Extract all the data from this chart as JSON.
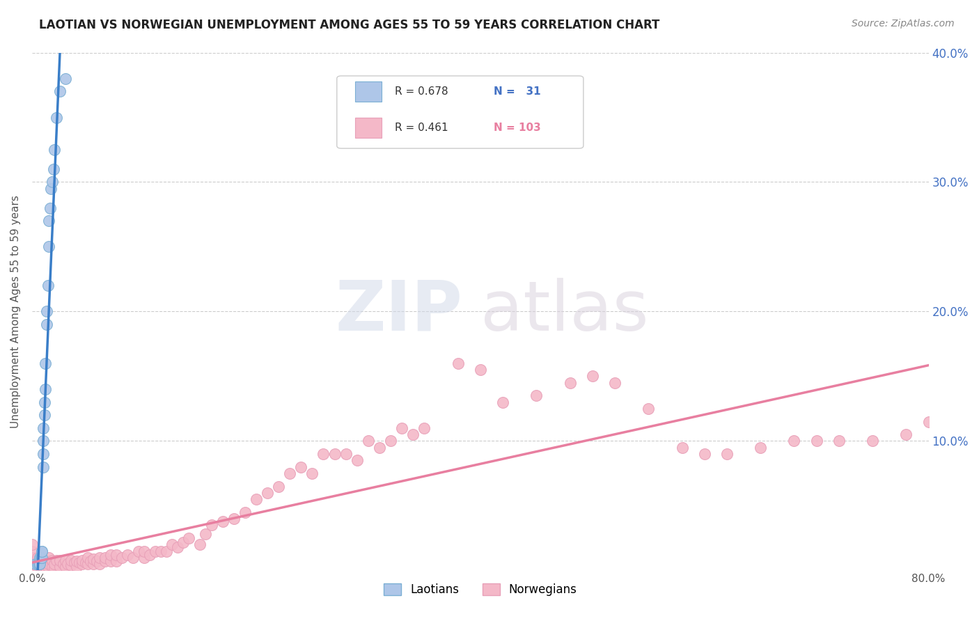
{
  "title": "LAOTIAN VS NORWEGIAN UNEMPLOYMENT AMONG AGES 55 TO 59 YEARS CORRELATION CHART",
  "source": "Source: ZipAtlas.com",
  "ylabel": "Unemployment Among Ages 55 to 59 years",
  "xlim": [
    0,
    0.8
  ],
  "ylim": [
    0,
    0.4
  ],
  "xtick_positions": [
    0.0,
    0.8
  ],
  "xtick_labels": [
    "0.0%",
    "80.0%"
  ],
  "ytick_positions": [
    0.0,
    0.1,
    0.2,
    0.3,
    0.4
  ],
  "ytick_labels": [
    "",
    "10.0%",
    "20.0%",
    "30.0%",
    "40.0%"
  ],
  "grid_yticks": [
    0.1,
    0.2,
    0.3,
    0.4
  ],
  "blue_line_color": "#3a7ec8",
  "pink_line_color": "#e87fa0",
  "blue_scatter_color": "#aec6e8",
  "pink_scatter_color": "#f4b8c8",
  "blue_scatter_edge": "#7bafd4",
  "pink_scatter_edge": "#e8a0b8",
  "right_tick_color": "#4472c4",
  "watermark_zip": "ZIP",
  "watermark_atlas": "atlas",
  "background_color": "#ffffff",
  "grid_color": "#cccccc",
  "laotian_x": [
    0.003,
    0.005,
    0.006,
    0.007,
    0.007,
    0.008,
    0.008,
    0.009,
    0.009,
    0.009,
    0.01,
    0.01,
    0.01,
    0.01,
    0.011,
    0.011,
    0.012,
    0.012,
    0.013,
    0.013,
    0.014,
    0.015,
    0.015,
    0.016,
    0.017,
    0.018,
    0.019,
    0.02,
    0.022,
    0.025,
    0.03
  ],
  "laotian_y": [
    0.005,
    0.005,
    0.005,
    0.005,
    0.01,
    0.01,
    0.01,
    0.01,
    0.015,
    0.015,
    0.08,
    0.09,
    0.1,
    0.11,
    0.12,
    0.13,
    0.14,
    0.16,
    0.19,
    0.2,
    0.22,
    0.25,
    0.27,
    0.28,
    0.295,
    0.3,
    0.31,
    0.325,
    0.35,
    0.37,
    0.38
  ],
  "norwegian_x": [
    0.0,
    0.0,
    0.0,
    0.0,
    0.005,
    0.005,
    0.005,
    0.008,
    0.008,
    0.01,
    0.01,
    0.012,
    0.012,
    0.015,
    0.015,
    0.015,
    0.018,
    0.018,
    0.02,
    0.02,
    0.022,
    0.025,
    0.025,
    0.028,
    0.03,
    0.03,
    0.032,
    0.035,
    0.035,
    0.038,
    0.04,
    0.04,
    0.042,
    0.045,
    0.045,
    0.048,
    0.05,
    0.05,
    0.052,
    0.055,
    0.055,
    0.058,
    0.06,
    0.06,
    0.065,
    0.065,
    0.07,
    0.07,
    0.075,
    0.075,
    0.08,
    0.085,
    0.09,
    0.095,
    0.1,
    0.1,
    0.105,
    0.11,
    0.115,
    0.12,
    0.125,
    0.13,
    0.135,
    0.14,
    0.15,
    0.155,
    0.16,
    0.17,
    0.18,
    0.19,
    0.2,
    0.21,
    0.22,
    0.23,
    0.24,
    0.25,
    0.26,
    0.27,
    0.28,
    0.29,
    0.3,
    0.31,
    0.32,
    0.33,
    0.34,
    0.35,
    0.38,
    0.4,
    0.42,
    0.45,
    0.48,
    0.5,
    0.52,
    0.55,
    0.58,
    0.6,
    0.62,
    0.65,
    0.68,
    0.7,
    0.72,
    0.75,
    0.78,
    0.8
  ],
  "norwegian_y": [
    0.005,
    0.01,
    0.015,
    0.02,
    0.002,
    0.005,
    0.01,
    0.002,
    0.008,
    0.003,
    0.008,
    0.003,
    0.008,
    0.002,
    0.005,
    0.01,
    0.003,
    0.008,
    0.002,
    0.005,
    0.008,
    0.003,
    0.008,
    0.005,
    0.003,
    0.008,
    0.005,
    0.004,
    0.008,
    0.006,
    0.003,
    0.007,
    0.006,
    0.005,
    0.008,
    0.006,
    0.005,
    0.01,
    0.007,
    0.005,
    0.009,
    0.007,
    0.005,
    0.01,
    0.007,
    0.01,
    0.007,
    0.012,
    0.007,
    0.012,
    0.01,
    0.012,
    0.01,
    0.015,
    0.01,
    0.015,
    0.012,
    0.015,
    0.015,
    0.015,
    0.02,
    0.018,
    0.022,
    0.025,
    0.02,
    0.028,
    0.035,
    0.038,
    0.04,
    0.045,
    0.055,
    0.06,
    0.065,
    0.075,
    0.08,
    0.075,
    0.09,
    0.09,
    0.09,
    0.085,
    0.1,
    0.095,
    0.1,
    0.11,
    0.105,
    0.11,
    0.16,
    0.155,
    0.13,
    0.135,
    0.145,
    0.15,
    0.145,
    0.125,
    0.095,
    0.09,
    0.09,
    0.095,
    0.1,
    0.1,
    0.1,
    0.1,
    0.105,
    0.115
  ]
}
